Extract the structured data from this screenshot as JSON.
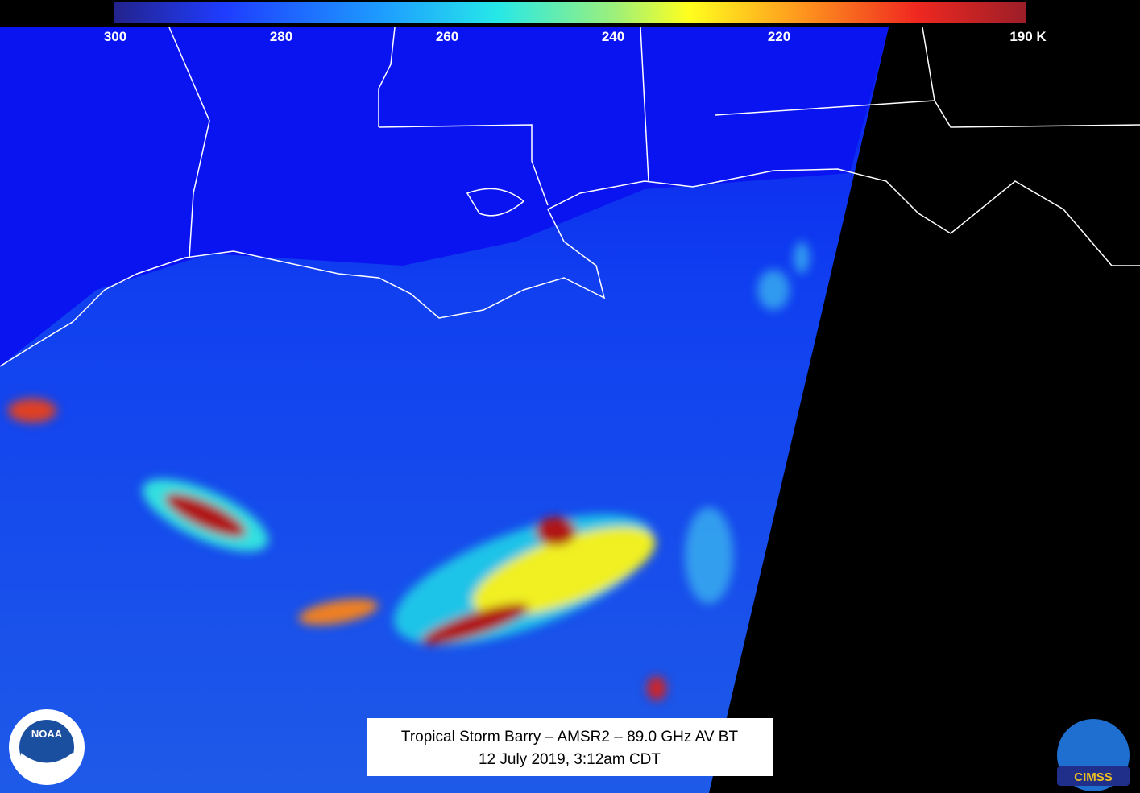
{
  "colorbar": {
    "range": [
      300,
      190
    ],
    "ticks": [
      300,
      280,
      260,
      240,
      220,
      {
        "value": 190,
        "label": "190 K"
      }
    ]
  },
  "caption": {
    "line1": "Tropical Storm Barry – AMSR2 – 89.0 GHz AV BT",
    "line2": "12 July 2019, 3:12am CDT"
  },
  "logos": {
    "left": "NOAA",
    "right": "CIMSS"
  }
}
